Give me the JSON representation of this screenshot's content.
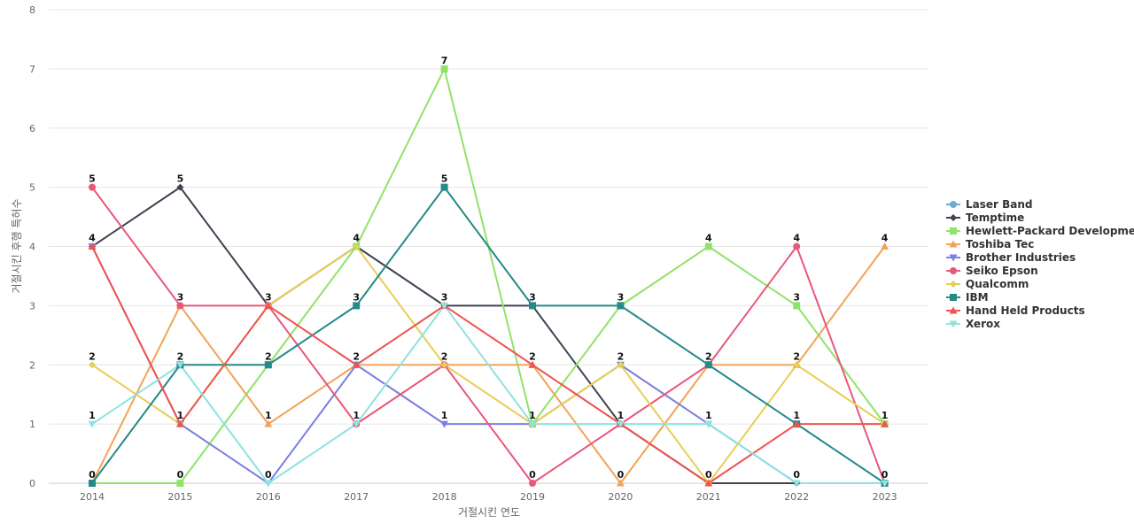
{
  "chart_data": {
    "type": "line",
    "title": "",
    "xlabel": "거절시킨 연도",
    "ylabel": "거절시킨 후행 특허수",
    "x": [
      "2014",
      "2015",
      "2016",
      "2017",
      "2018",
      "2019",
      "2020",
      "2021",
      "2022",
      "2023"
    ],
    "ylim": [
      0,
      8
    ],
    "yticks": [
      0,
      1,
      2,
      3,
      4,
      5,
      6,
      7,
      8
    ],
    "grid": true,
    "legend_position": "right",
    "series": [
      {
        "name": "Laser Band",
        "color": "#6aaed6",
        "marker": "circle",
        "values": [
          null,
          null,
          null,
          null,
          null,
          null,
          null,
          null,
          null,
          null
        ]
      },
      {
        "name": "Temptime",
        "color": "#3d4451",
        "marker": "diamond",
        "values": [
          4,
          5,
          3,
          4,
          3,
          3,
          1,
          0,
          0,
          0
        ]
      },
      {
        "name": "Hewlett-Packard Development",
        "color": "#8fe36a",
        "marker": "square",
        "values": [
          0,
          0,
          2,
          4,
          7,
          1,
          3,
          4,
          3,
          1
        ]
      },
      {
        "name": "Toshiba Tec",
        "color": "#f2a35a",
        "marker": "triangle",
        "values": [
          0,
          3,
          1,
          2,
          2,
          2,
          0,
          2,
          2,
          4
        ]
      },
      {
        "name": "Brother Industries",
        "color": "#7c7fe0",
        "marker": "triangle-down",
        "values": [
          4,
          1,
          0,
          2,
          1,
          1,
          2,
          1,
          0,
          0
        ]
      },
      {
        "name": "Seiko Epson",
        "color": "#e8587a",
        "marker": "circle",
        "values": [
          5,
          3,
          3,
          1,
          2,
          0,
          1,
          2,
          4,
          0
        ]
      },
      {
        "name": "Qualcomm",
        "color": "#e6cf58",
        "marker": "diamond",
        "values": [
          2,
          1,
          3,
          4,
          2,
          1,
          2,
          0,
          2,
          1
        ]
      },
      {
        "name": "IBM",
        "color": "#268a88",
        "marker": "square",
        "values": [
          0,
          2,
          2,
          3,
          5,
          3,
          3,
          2,
          1,
          0
        ]
      },
      {
        "name": "Hand Held Products",
        "color": "#ef5350",
        "marker": "triangle",
        "values": [
          4,
          1,
          3,
          2,
          3,
          2,
          1,
          0,
          1,
          1
        ]
      },
      {
        "name": "Xerox",
        "color": "#8ee3e0",
        "marker": "triangle-down",
        "values": [
          1,
          2,
          0,
          1,
          3,
          1,
          1,
          1,
          0,
          0
        ]
      }
    ],
    "data_labels": [
      {
        "x": "2014",
        "y": 5,
        "text": "5"
      },
      {
        "x": "2014",
        "y": 4,
        "text": "4"
      },
      {
        "x": "2014",
        "y": 2,
        "text": "2"
      },
      {
        "x": "2014",
        "y": 1,
        "text": "1"
      },
      {
        "x": "2014",
        "y": 0,
        "text": "0"
      },
      {
        "x": "2015",
        "y": 5,
        "text": "5"
      },
      {
        "x": "2015",
        "y": 3,
        "text": "3"
      },
      {
        "x": "2015",
        "y": 2,
        "text": "2"
      },
      {
        "x": "2015",
        "y": 1,
        "text": "1"
      },
      {
        "x": "2015",
        "y": 0,
        "text": "0"
      },
      {
        "x": "2016",
        "y": 3,
        "text": "3"
      },
      {
        "x": "2016",
        "y": 2,
        "text": "2"
      },
      {
        "x": "2016",
        "y": 1,
        "text": "1"
      },
      {
        "x": "2016",
        "y": 0,
        "text": "0"
      },
      {
        "x": "2017",
        "y": 4,
        "text": "4"
      },
      {
        "x": "2017",
        "y": 3,
        "text": "3"
      },
      {
        "x": "2017",
        "y": 2,
        "text": "2"
      },
      {
        "x": "2017",
        "y": 1,
        "text": "1"
      },
      {
        "x": "2018",
        "y": 7,
        "text": "7"
      },
      {
        "x": "2018",
        "y": 5,
        "text": "5"
      },
      {
        "x": "2018",
        "y": 3,
        "text": "3"
      },
      {
        "x": "2018",
        "y": 2,
        "text": "2"
      },
      {
        "x": "2018",
        "y": 1,
        "text": "1"
      },
      {
        "x": "2019",
        "y": 3,
        "text": "3"
      },
      {
        "x": "2019",
        "y": 2,
        "text": "2"
      },
      {
        "x": "2019",
        "y": 1,
        "text": "1"
      },
      {
        "x": "2019",
        "y": 0,
        "text": "0"
      },
      {
        "x": "2020",
        "y": 3,
        "text": "3"
      },
      {
        "x": "2020",
        "y": 2,
        "text": "2"
      },
      {
        "x": "2020",
        "y": 1,
        "text": "1"
      },
      {
        "x": "2020",
        "y": 0,
        "text": "0"
      },
      {
        "x": "2021",
        "y": 4,
        "text": "4"
      },
      {
        "x": "2021",
        "y": 2,
        "text": "2"
      },
      {
        "x": "2021",
        "y": 1,
        "text": "1"
      },
      {
        "x": "2021",
        "y": 0,
        "text": "0"
      },
      {
        "x": "2022",
        "y": 4,
        "text": "4"
      },
      {
        "x": "2022",
        "y": 3,
        "text": "3"
      },
      {
        "x": "2022",
        "y": 2,
        "text": "2"
      },
      {
        "x": "2022",
        "y": 1,
        "text": "1"
      },
      {
        "x": "2022",
        "y": 0,
        "text": "0"
      },
      {
        "x": "2023",
        "y": 4,
        "text": "4"
      },
      {
        "x": "2023",
        "y": 1,
        "text": "1"
      },
      {
        "x": "2023",
        "y": 0,
        "text": "0"
      }
    ]
  }
}
